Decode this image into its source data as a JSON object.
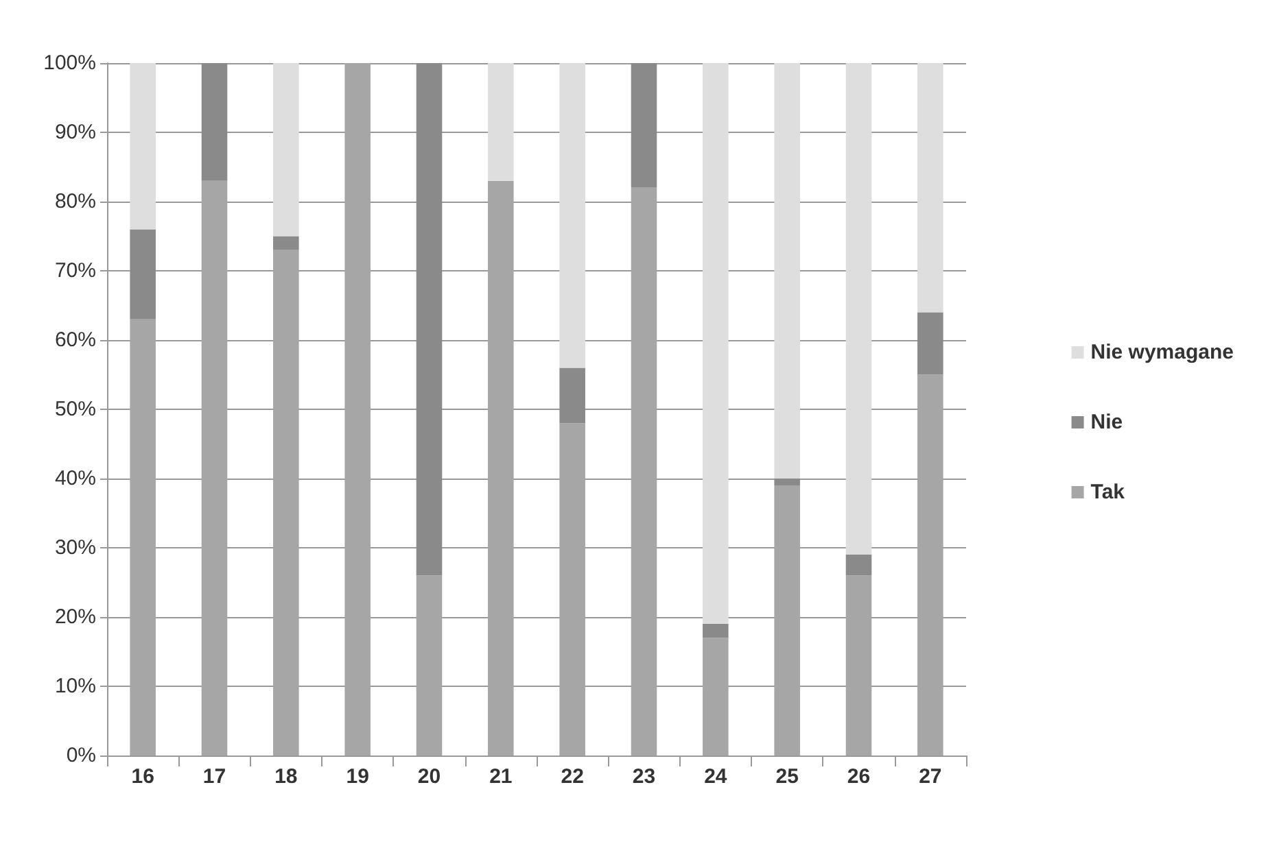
{
  "chart_data": {
    "type": "bar",
    "stacked": true,
    "categories": [
      "16",
      "17",
      "18",
      "19",
      "20",
      "21",
      "22",
      "23",
      "24",
      "25",
      "26",
      "27"
    ],
    "series": [
      {
        "name": "Tak",
        "color": "#a6a6a6",
        "values": [
          63,
          83,
          73,
          100,
          26,
          83,
          48,
          82,
          17,
          39,
          26,
          55
        ]
      },
      {
        "name": "Nie",
        "color": "#8a8a8a",
        "values": [
          13,
          17,
          2,
          0,
          74,
          0,
          8,
          18,
          2,
          1,
          3,
          9
        ]
      },
      {
        "name": "Nie wymagane",
        "color": "#dedede",
        "values": [
          24,
          0,
          25,
          0,
          0,
          17,
          44,
          0,
          81,
          60,
          71,
          36
        ]
      }
    ],
    "ylim": [
      0,
      100
    ],
    "yticks": [
      {
        "value": 0,
        "label": "0%"
      },
      {
        "value": 10,
        "label": "10%"
      },
      {
        "value": 20,
        "label": "20%"
      },
      {
        "value": 30,
        "label": "30%"
      },
      {
        "value": 40,
        "label": "40%"
      },
      {
        "value": 50,
        "label": "50%"
      },
      {
        "value": 60,
        "label": "60%"
      },
      {
        "value": 70,
        "label": "70%"
      },
      {
        "value": 80,
        "label": "80%"
      },
      {
        "value": 90,
        "label": "90%"
      },
      {
        "value": 100,
        "label": "100%"
      }
    ],
    "grid": "y",
    "legend": "right"
  }
}
